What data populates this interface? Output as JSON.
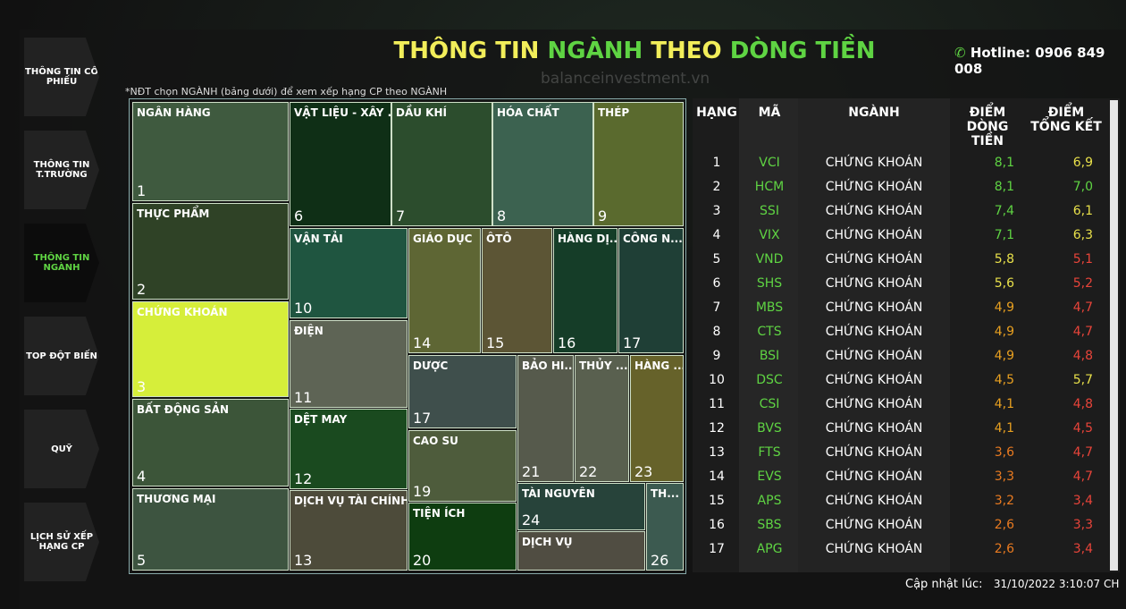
{
  "nav": [
    "THÔNG TIN CỔ PHIẾU",
    "THÔNG TIN T.TRƯỜNG",
    "THÔNG TIN NGÀNH",
    "TOP ĐỘT BIẾN",
    "QUỸ",
    "LỊCH SỬ XẾP HẠNG CP"
  ],
  "header": {
    "title_parts": [
      {
        "text": "THÔNG TIN ",
        "color": "#f2ee5a"
      },
      {
        "text": "NGÀNH ",
        "color": "#5fd443"
      },
      {
        "text": "THEO ",
        "color": "#f2ee5a"
      },
      {
        "text": "DÒNG TIỀN",
        "color": "#5fd443"
      }
    ],
    "hotline": "Hotline: 0906 849 008",
    "watermark": "balanceinvestment.vn"
  },
  "note": "*NĐT chọn NGÀNH (bảng dưới) để xem xếp hạng CP theo NGÀNH",
  "treemap": [
    {
      "label": "NGÂN HÀNG",
      "rank": 1,
      "color": "#3f5a3f"
    },
    {
      "label": "THỰC PHẨM",
      "rank": 2,
      "color": "#2f4226"
    },
    {
      "label": "CHỨNG KHOÁN",
      "rank": 3,
      "color": "#d6ee3a"
    },
    {
      "label": "BẤT ĐỘNG SẢN",
      "rank": 4,
      "color": "#3c5539"
    },
    {
      "label": "THƯƠNG MẠI",
      "rank": 5,
      "color": "#3d5440"
    },
    {
      "label": "VẬT LIỆU - XÂY ...",
      "rank": 6,
      "color": "#0f2f16"
    },
    {
      "label": "DẦU KHÍ",
      "rank": 7,
      "color": "#2c4d2d"
    },
    {
      "label": "HÓA CHẤT",
      "rank": 8,
      "color": "#3c6250"
    },
    {
      "label": "THÉP",
      "rank": 9,
      "color": "#5a6a2e"
    },
    {
      "label": "VẬN TẢI",
      "rank": 10,
      "color": "#1f5540"
    },
    {
      "label": "ĐIỆN",
      "rank": 11,
      "color": "#5e6455"
    },
    {
      "label": "DỆT MAY",
      "rank": 12,
      "color": "#1a4a1f"
    },
    {
      "label": "DỊCH VỤ TÀI CHÍNH",
      "rank": 13,
      "color": "#4d4b3a"
    },
    {
      "label": "GIÁO DỤC",
      "rank": 14,
      "color": "#5e6634"
    },
    {
      "label": "ÔTÔ",
      "rank": 15,
      "color": "#5c5535"
    },
    {
      "label": "HÀNG DỊ...",
      "rank": 16,
      "color": "#153d28"
    },
    {
      "label": "CÔNG N...",
      "rank": 17,
      "color": "#1f3f36"
    },
    {
      "label": "DƯỢC",
      "rank": 17,
      "color": "#3f4f4c"
    },
    {
      "label": "CAO SU",
      "rank": 19,
      "color": "#4e5c3c"
    },
    {
      "label": "TIỆN ÍCH",
      "rank": 20,
      "color": "#0e3d10"
    },
    {
      "label": "BẢO HI...",
      "rank": 21,
      "color": "#565a4c"
    },
    {
      "label": "THỦY ...",
      "rank": 22,
      "color": "#59604f"
    },
    {
      "label": "HÀNG ...",
      "rank": 23,
      "color": "#66622a"
    },
    {
      "label": "TÀI NGUYÊN",
      "rank": 24,
      "color": "#27433a"
    },
    {
      "label": "DỊCH VỤ",
      "color": "#504d42"
    },
    {
      "label": "TH...",
      "rank": 26,
      "color": "#3c5a50"
    }
  ],
  "table": {
    "headers": [
      "HẠNG",
      "MÃ",
      "NGÀNH",
      "ĐIỂM DÒNG TIỀN",
      "ĐIỂM TỔNG KẾT"
    ],
    "rows": [
      [
        "1",
        "VCI",
        "CHỨNG KHOÁN",
        "8,1",
        "6,9",
        "#5fd443",
        "#e8e04a"
      ],
      [
        "2",
        "HCM",
        "CHỨNG KHOÁN",
        "8,1",
        "7,0",
        "#5fd443",
        "#5fd443"
      ],
      [
        "3",
        "SSI",
        "CHỨNG KHOÁN",
        "7,4",
        "6,1",
        "#5fd443",
        "#e8e04a"
      ],
      [
        "4",
        "VIX",
        "CHỨNG KHOÁN",
        "7,1",
        "6,3",
        "#5fd443",
        "#e8e04a"
      ],
      [
        "5",
        "VND",
        "CHỨNG KHOÁN",
        "5,8",
        "5,1",
        "#e8e04a",
        "#e8443a"
      ],
      [
        "6",
        "SHS",
        "CHỨNG KHOÁN",
        "5,6",
        "5,2",
        "#e8e04a",
        "#e8443a"
      ],
      [
        "7",
        "MBS",
        "CHỨNG KHOÁN",
        "4,9",
        "4,7",
        "#e8a020",
        "#e8443a"
      ],
      [
        "8",
        "CTS",
        "CHỨNG KHOÁN",
        "4,9",
        "4,7",
        "#e8a020",
        "#e8443a"
      ],
      [
        "9",
        "BSI",
        "CHỨNG KHOÁN",
        "4,9",
        "4,8",
        "#e8a020",
        "#e8443a"
      ],
      [
        "10",
        "DSC",
        "CHỨNG KHOÁN",
        "4,5",
        "5,7",
        "#e8a020",
        "#e8e04a"
      ],
      [
        "11",
        "CSI",
        "CHỨNG KHOÁN",
        "4,1",
        "4,8",
        "#e8a020",
        "#e8443a"
      ],
      [
        "12",
        "BVS",
        "CHỨNG KHOÁN",
        "4,1",
        "4,5",
        "#e8a020",
        "#e8443a"
      ],
      [
        "13",
        "FTS",
        "CHỨNG KHOÁN",
        "3,6",
        "4,7",
        "#e87a20",
        "#e8443a"
      ],
      [
        "14",
        "EVS",
        "CHỨNG KHOÁN",
        "3,3",
        "4,7",
        "#e87a20",
        "#e8443a"
      ],
      [
        "15",
        "APS",
        "CHỨNG KHOÁN",
        "3,2",
        "3,4",
        "#e87a20",
        "#e8443a"
      ],
      [
        "16",
        "SBS",
        "CHỨNG KHOÁN",
        "2,6",
        "3,3",
        "#e87a20",
        "#e8443a"
      ],
      [
        "17",
        "APG",
        "CHỨNG KHOÁN",
        "2,6",
        "3,4",
        "#e87a20",
        "#e8443a"
      ]
    ]
  },
  "footer": {
    "label": "Cập nhật lúc:",
    "time": "31/10/2022 3:10:07 CH"
  }
}
